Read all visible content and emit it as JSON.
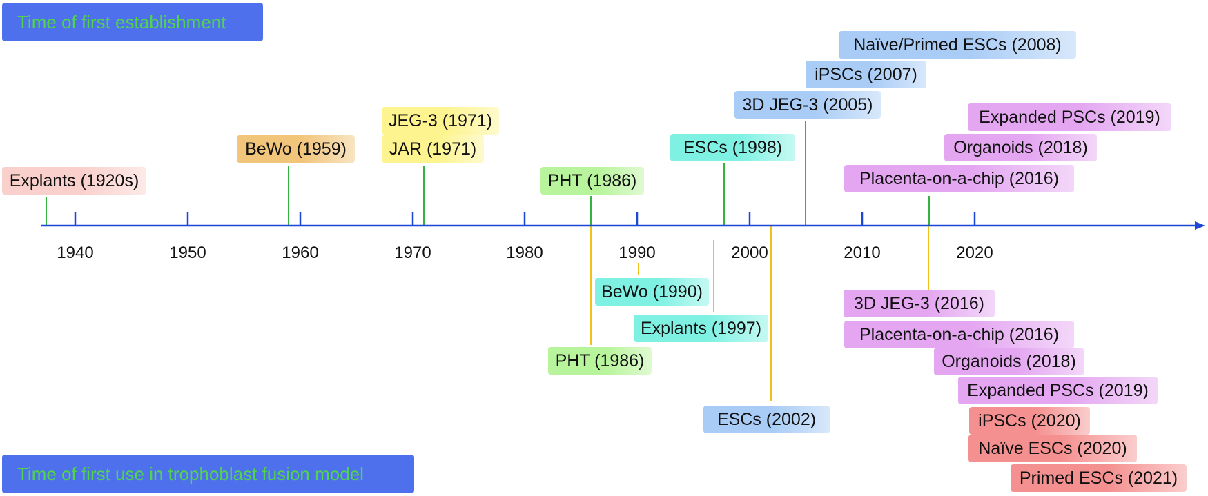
{
  "headers": {
    "establishment": "Time of first establishment",
    "fusion": "Time of first use in trophoblast fusion model"
  },
  "axis": {
    "ticks": [
      "1940",
      "1950",
      "1960",
      "1970",
      "1980",
      "1990",
      "2000",
      "2010",
      "2020"
    ]
  },
  "colors": {
    "axis": "#1d47d6",
    "header_bg": "#4f70ec",
    "header_text": "#52d34d",
    "establishment_connector": "#35b23f",
    "fusion_connector": "#f2c11c",
    "label_pink": "#fad0cc",
    "label_orange": "#f1c57a",
    "label_yellow": "#fdf48f",
    "label_green": "#b8f49b",
    "label_cyan": "#7ef1e3",
    "label_blue": "#a9ccf6",
    "label_violet": "#e4a6f1",
    "label_red": "#f59090"
  },
  "establishment": [
    {
      "label": "Explants (1920s)",
      "color": "label_pink"
    },
    {
      "label": "BeWo (1959)",
      "color": "label_orange"
    },
    {
      "label": "JEG-3 (1971)",
      "color": "label_yellow"
    },
    {
      "label": "JAR (1971)",
      "color": "label_yellow"
    },
    {
      "label": "PHT (1986)",
      "color": "label_green"
    },
    {
      "label": "ESCs (1998)",
      "color": "label_cyan"
    },
    {
      "label": "3D JEG-3 (2005)",
      "color": "label_blue"
    },
    {
      "label": "iPSCs (2007)",
      "color": "label_blue"
    },
    {
      "label": "Naïve/Primed ESCs (2008)",
      "color": "label_blue"
    },
    {
      "label": "Placenta-on-a-chip (2016)",
      "color": "label_violet"
    },
    {
      "label": "Organoids (2018)",
      "color": "label_violet"
    },
    {
      "label": "Expanded PSCs (2019)",
      "color": "label_violet"
    }
  ],
  "fusion": [
    {
      "label": "BeWo (1990)",
      "color": "label_cyan"
    },
    {
      "label": "Explants (1997)",
      "color": "label_cyan"
    },
    {
      "label": "PHT (1986)",
      "color": "label_green"
    },
    {
      "label": "ESCs (2002)",
      "color": "label_blue"
    },
    {
      "label": "3D JEG-3 (2016)",
      "color": "label_violet"
    },
    {
      "label": "Placenta-on-a-chip (2016)",
      "color": "label_violet"
    },
    {
      "label": "Organoids (2018)",
      "color": "label_violet"
    },
    {
      "label": "Expanded PSCs (2019)",
      "color": "label_violet"
    },
    {
      "label": "iPSCs (2020)",
      "color": "label_red"
    },
    {
      "label": "Naïve ESCs (2020)",
      "color": "label_red"
    },
    {
      "label": "Primed ESCs (2021)",
      "color": "label_red"
    }
  ]
}
